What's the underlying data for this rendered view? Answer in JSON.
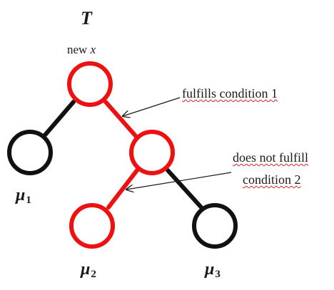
{
  "diagram": {
    "title": "T",
    "root_label_prefix": "new ",
    "root_label_var": "x",
    "annotations": {
      "condition1": "fulfills condition 1",
      "condition2_line1": "does not fulfill",
      "condition2_line2": "condition 2"
    },
    "leaves": [
      {
        "symbol": "μ",
        "index": "1"
      },
      {
        "symbol": "μ",
        "index": "2"
      },
      {
        "symbol": "μ",
        "index": "3"
      }
    ],
    "colors": {
      "path": "#ee1111",
      "default": "#111111",
      "text": "#1a1a1a",
      "arrow": "#1a1a1a"
    }
  }
}
